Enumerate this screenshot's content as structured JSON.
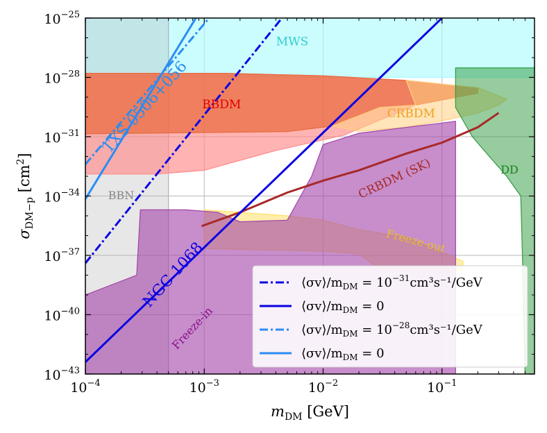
{
  "chart_data": {
    "type": "area",
    "title": "",
    "xscale": "log",
    "yscale": "log",
    "xlim": [
      0.0001,
      0.6
    ],
    "ylim": [
      1e-43,
      1e-25
    ],
    "xlabel": {
      "var": "m",
      "sub": "DM",
      "unit": " [GeV]"
    },
    "ylabel": {
      "var": "σ",
      "sub": "DM−p",
      "unit": " [cm",
      "sup": "2",
      "close": "]"
    },
    "x_ticks": [
      {
        "value": 0.0001,
        "base": "10",
        "exp": "−4"
      },
      {
        "value": 0.001,
        "base": "10",
        "exp": "−3"
      },
      {
        "value": 0.01,
        "base": "10",
        "exp": "−2"
      },
      {
        "value": 0.1,
        "base": "10",
        "exp": "−1"
      }
    ],
    "y_ticks": [
      {
        "value": 1e-25,
        "base": "10",
        "exp": "−25"
      },
      {
        "value": 1e-28,
        "base": "10",
        "exp": "−28"
      },
      {
        "value": 1e-31,
        "base": "10",
        "exp": "−31"
      },
      {
        "value": 1e-34,
        "base": "10",
        "exp": "−34"
      },
      {
        "value": 1e-37,
        "base": "10",
        "exp": "−37"
      },
      {
        "value": 1e-40,
        "base": "10",
        "exp": "−40"
      },
      {
        "value": 1e-43,
        "base": "10",
        "exp": "−43"
      }
    ],
    "grid": true,
    "regions": [
      {
        "name": "MWS",
        "color": "#a8fbff",
        "opacity": 0.6,
        "points": [
          [
            0.0001,
            1e-25
          ],
          [
            0.6,
            1e-25
          ],
          [
            0.6,
            1e-28
          ],
          [
            0.12,
            1e-28
          ],
          [
            0.02,
            1e-28
          ],
          [
            0.001,
            1e-28
          ],
          [
            0.0001,
            1e-28
          ]
        ]
      },
      {
        "name": "BBN",
        "color": "#b0b0b0",
        "opacity": 0.3,
        "points": [
          [
            0.0001,
            1e-25
          ],
          [
            0.0005,
            1e-25
          ],
          [
            0.0005,
            1e-43
          ],
          [
            0.0001,
            1e-43
          ]
        ]
      },
      {
        "name": "BBDM-outer",
        "color": "#ff8a8a",
        "opacity": 0.65,
        "points": [
          [
            0.0001,
            1.6e-28
          ],
          [
            0.0015,
            1.6e-28
          ],
          [
            0.01,
            1.2e-28
          ],
          [
            0.05,
            7e-29
          ],
          [
            0.12,
            4e-29
          ],
          [
            0.2,
            3e-29
          ],
          [
            0.2,
            1.6e-29
          ],
          [
            0.06,
            4e-30
          ],
          [
            0.015,
            1.2e-31
          ],
          [
            0.004,
            2e-32
          ],
          [
            0.001,
            2e-33
          ],
          [
            0.0004,
            1.3e-33
          ],
          [
            0.0001,
            1.3e-33
          ]
        ]
      },
      {
        "name": "BBDM",
        "color": "#e86a3c",
        "opacity": 0.7,
        "points": [
          [
            0.0001,
            1.6e-28
          ],
          [
            0.0015,
            1.6e-28
          ],
          [
            0.01,
            1.2e-28
          ],
          [
            0.05,
            7e-29
          ],
          [
            0.12,
            4e-29
          ],
          [
            0.2,
            3e-29
          ],
          [
            0.2,
            1.6e-29
          ],
          [
            0.06,
            4e-30
          ],
          [
            0.03,
            3e-30
          ],
          [
            0.012,
            3.5e-31
          ],
          [
            0.005,
            1.8e-31
          ],
          [
            0.0001,
            1.4e-31
          ]
        ]
      },
      {
        "name": "CRBDM",
        "color": "#ffd080",
        "opacity": 0.55,
        "points": [
          [
            0.05,
            7e-29
          ],
          [
            0.2,
            3e-29
          ],
          [
            0.35,
            8e-30
          ],
          [
            0.3,
            4e-30
          ],
          [
            0.2,
            1.6e-30
          ],
          [
            0.12,
            8e-31
          ],
          [
            0.05,
            3e-31
          ],
          [
            0.02,
            1.9e-31
          ],
          [
            0.012,
            3.5e-31
          ],
          [
            0.03,
            3e-30
          ],
          [
            0.06,
            4e-30
          ]
        ]
      },
      {
        "name": "Freeze-out",
        "color": "#ffe066",
        "opacity": 0.55,
        "points": [
          [
            0.001,
            2e-35
          ],
          [
            0.005,
            1e-35
          ],
          [
            0.01,
            6e-36
          ],
          [
            0.02,
            2e-36
          ],
          [
            0.05,
            8e-37
          ],
          [
            0.1,
            1.5e-37
          ],
          [
            0.15,
            5e-38
          ],
          [
            0.15,
            1.5e-38
          ],
          [
            0.05,
            2e-38
          ],
          [
            0.03,
            2e-38
          ],
          [
            0.02,
            1.2e-37
          ],
          [
            0.01,
            1.6e-37
          ],
          [
            0.005,
            1.8e-37
          ],
          [
            0.001,
            2.2e-37
          ]
        ]
      },
      {
        "name": "Freeze-in",
        "color": "#a243a8",
        "opacity": 0.6,
        "points": [
          [
            0.0001,
            1e-39
          ],
          [
            0.00027,
            1e-38
          ],
          [
            0.00029,
            2e-35
          ],
          [
            0.0007,
            2e-35
          ],
          [
            0.0013,
            1.5e-35
          ],
          [
            0.002,
            5e-36
          ],
          [
            0.005,
            6e-36
          ],
          [
            0.008,
            1e-33
          ],
          [
            0.01,
            4e-32
          ],
          [
            0.02,
            1.5e-31
          ],
          [
            0.13,
            6e-31
          ],
          [
            0.13,
            1e-43
          ],
          [
            0.0001,
            1e-43
          ]
        ]
      },
      {
        "name": "DD",
        "color": "#2e9a3e",
        "opacity": 0.5,
        "points": [
          [
            0.13,
            3e-28
          ],
          [
            0.6,
            3e-28
          ],
          [
            0.6,
            1e-43
          ],
          [
            0.5,
            1e-43
          ],
          [
            0.48,
            1e-38
          ],
          [
            0.46,
            1e-34
          ],
          [
            0.35,
            1e-33
          ],
          [
            0.25,
            1e-32
          ],
          [
            0.18,
            1e-31
          ],
          [
            0.13,
            3e-30
          ]
        ]
      }
    ],
    "series": [
      {
        "name": "CRBDM (SK)",
        "kind": "curve",
        "color": "#a82828",
        "width": 3,
        "dash": "",
        "points": [
          [
            0.00095,
            3e-36
          ],
          [
            0.002,
            1.5e-35
          ],
          [
            0.005,
            1.5e-34
          ],
          [
            0.01,
            6e-34
          ],
          [
            0.02,
            2e-33
          ],
          [
            0.05,
            1.4e-32
          ],
          [
            0.1,
            5e-32
          ],
          [
            0.2,
            3e-31
          ],
          [
            0.3,
            1.6e-30
          ]
        ]
      },
      {
        "name": "⟨σv⟩/m_DM = 10^-31 cm^3 s^-1/GeV (NGC 1068)",
        "kind": "line",
        "color": "#0b00e3",
        "width": 3,
        "dash": "12,4,3,4",
        "points": [
          [
            0.0001,
            4e-38
          ],
          [
            0.0045,
            1e-25
          ]
        ]
      },
      {
        "name": "⟨σv⟩/m_DM = 0 (NGC 1068)",
        "kind": "line",
        "color": "#0b00e3",
        "width": 3,
        "dash": "",
        "points": [
          [
            0.0001,
            4e-43
          ],
          [
            0.1,
            1e-25
          ]
        ]
      },
      {
        "name": "⟨σv⟩/m_DM = 10^-28 cm^3 s^-1/GeV (TXS 0506+056)",
        "kind": "line",
        "color": "#2b8cf2",
        "width": 3,
        "dash": "12,4,3,4",
        "points": [
          [
            0.0001,
            4e-33
          ],
          [
            0.0011,
            1e-25
          ]
        ]
      },
      {
        "name": "⟨σv⟩/m_DM = 0 (TXS 0506+056)",
        "kind": "line",
        "color": "#2b8cf2",
        "width": 3,
        "dash": "",
        "points": [
          [
            0.0001,
            7e-35
          ],
          [
            0.00085,
            1e-25
          ]
        ]
      }
    ],
    "annotations": [
      {
        "text": "MWS",
        "color": "#33cccc",
        "x": 0.0055,
        "y": 6e-27,
        "rotate": 0,
        "size": 17
      },
      {
        "text": "BBDM",
        "color": "#e00000",
        "x": 0.0014,
        "y": 4e-30,
        "rotate": 0,
        "size": 17
      },
      {
        "text": "CRBDM",
        "color": "#f0a020",
        "x": 0.055,
        "y": 1.4e-30,
        "rotate": 0,
        "size": 17
      },
      {
        "text": "BBN",
        "color": "#888888",
        "x": 0.0002,
        "y": 1e-34,
        "rotate": 0,
        "size": 16
      },
      {
        "text": "DD",
        "color": "#1a8020",
        "x": 0.37,
        "y": 2e-33,
        "rotate": 0,
        "size": 16
      },
      {
        "text": "CRBDM (SK)",
        "color": "#a82828",
        "x": 0.04,
        "y": 7e-34,
        "rotate": -25,
        "size": 17
      },
      {
        "text": "Freeze-out",
        "color": "#e8c020",
        "x": 0.06,
        "y": 5e-37,
        "rotate": 15,
        "size": 16
      },
      {
        "text": "Freeze-in",
        "color": "#8a108a",
        "x": 0.0008,
        "y": 2e-41,
        "rotate": -47,
        "size": 16
      },
      {
        "text": "TXS 0506+056",
        "color": "#2b8cf2",
        "x": 0.00032,
        "y": 3e-30,
        "rotate": -48,
        "size": 22
      },
      {
        "text": "NGC 1068",
        "color": "#0b00e3",
        "x": 0.00055,
        "y": 1e-38,
        "rotate": -48,
        "size": 22
      }
    ],
    "legend": {
      "position": "lower-right",
      "entries": [
        {
          "color": "#0b00e3",
          "dash": "12,4,3,4",
          "label": {
            "prefix": "⟨σv⟩/m",
            "sub": "DM",
            "mid": " = 10",
            "exp": "−31",
            "tail": "cm³s⁻¹/GeV"
          }
        },
        {
          "color": "#0b00e3",
          "dash": "",
          "label": {
            "prefix": "⟨σv⟩/m",
            "sub": "DM",
            "mid": " = 0",
            "exp": "",
            "tail": ""
          }
        },
        {
          "color": "#2b8cf2",
          "dash": "12,4,3,4",
          "label": {
            "prefix": "⟨σv⟩/m",
            "sub": "DM",
            "mid": " = 10",
            "exp": "−28",
            "tail": "cm³s⁻¹/GeV"
          }
        },
        {
          "color": "#2b8cf2",
          "dash": "",
          "label": {
            "prefix": "⟨σv⟩/m",
            "sub": "DM",
            "mid": " = 0",
            "exp": "",
            "tail": ""
          }
        }
      ]
    }
  }
}
